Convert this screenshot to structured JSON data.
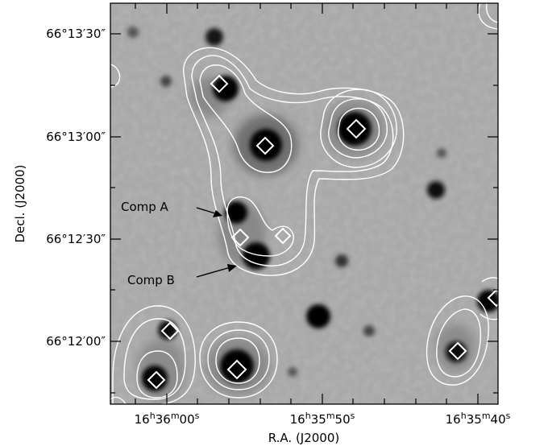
{
  "axes": {
    "xlabel": "R.A. (J2000)",
    "ylabel": "Decl. (J2000)",
    "x_ticks": [
      {
        "h": "16",
        "m": "36",
        "s": "00"
      },
      {
        "h": "16",
        "m": "35",
        "s": "50"
      },
      {
        "h": "16",
        "m": "35",
        "s": "40"
      }
    ],
    "y_ticks": [
      "66°13′30″",
      "66°13′00″",
      "66°12′30″",
      "66°12′00″"
    ]
  },
  "annotations": [
    {
      "label": "Comp A"
    },
    {
      "label": "Comp B"
    }
  ],
  "colors": {
    "contour": "#ffffff",
    "marker": "#ffffff",
    "frame": "#000000"
  }
}
